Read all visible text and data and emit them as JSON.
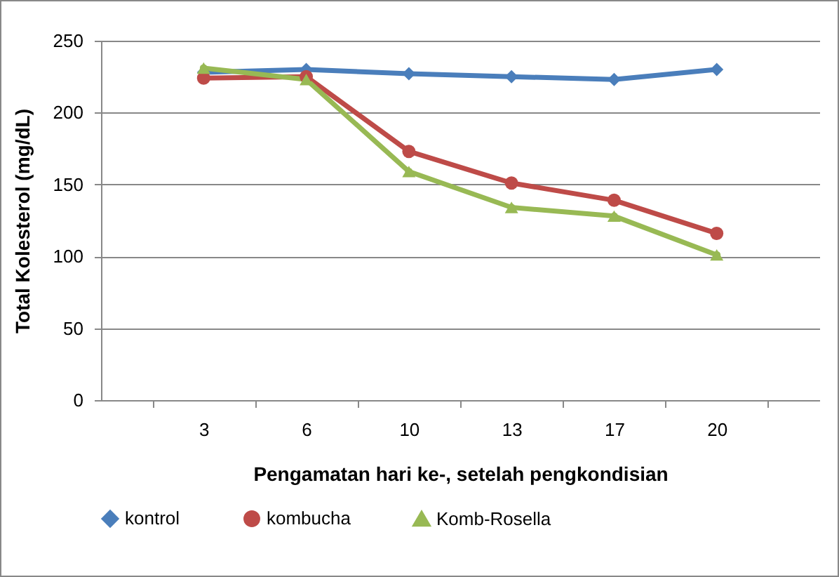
{
  "chart_data": {
    "type": "line",
    "xlabel": "Pengamatan hari ke-, setelah pengkondisian",
    "ylabel": "Total Kolesterol (mg/dL)",
    "categories": [
      "3",
      "6",
      "10",
      "13",
      "17",
      "20"
    ],
    "series": [
      {
        "name": "kontrol",
        "color": "#4a7ebb",
        "marker": "diamond",
        "values": [
          228,
          230,
          227,
          225,
          223,
          230
        ]
      },
      {
        "name": "kombucha",
        "color": "#be4b48",
        "marker": "circle",
        "values": [
          224,
          225,
          173,
          151,
          139,
          116
        ]
      },
      {
        "name": "Komb-Rosella",
        "color": "#98b954",
        "marker": "triangle",
        "values": [
          231,
          223,
          159,
          134,
          128,
          101
        ]
      }
    ],
    "ylim": [
      0,
      250
    ],
    "yticks": [
      0,
      50,
      100,
      150,
      200,
      250
    ],
    "grid": "y",
    "legend": "bottom"
  }
}
